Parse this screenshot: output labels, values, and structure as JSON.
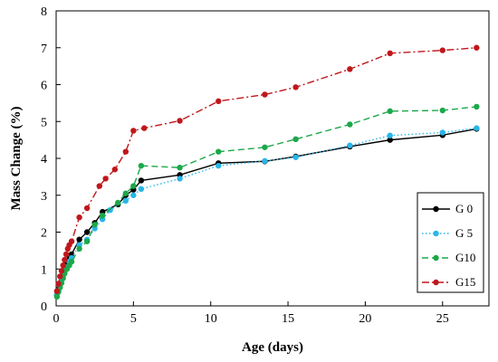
{
  "chart_data": {
    "type": "line",
    "xlabel": "Age (days)",
    "ylabel": "Mass Change (%)",
    "xlim": [
      0,
      28
    ],
    "ylim": [
      0,
      8
    ],
    "xticks": [
      0,
      5,
      10,
      15,
      20,
      25
    ],
    "yticks": [
      0,
      1,
      2,
      3,
      4,
      5,
      6,
      7,
      8
    ],
    "grid": false,
    "legend_position": "bottom-right",
    "series": [
      {
        "name": "G 0",
        "color": "#000000",
        "line_style": "solid",
        "points": [
          [
            0.05,
            0.3
          ],
          [
            0.15,
            0.45
          ],
          [
            0.25,
            0.6
          ],
          [
            0.35,
            0.75
          ],
          [
            0.45,
            0.9
          ],
          [
            0.55,
            1.0
          ],
          [
            0.7,
            1.15
          ],
          [
            0.85,
            1.28
          ],
          [
            1.0,
            1.4
          ],
          [
            1.5,
            1.8
          ],
          [
            2.0,
            2.0
          ],
          [
            2.5,
            2.25
          ],
          [
            3.0,
            2.55
          ],
          [
            4.0,
            2.75
          ],
          [
            4.5,
            3.0
          ],
          [
            5.0,
            3.15
          ],
          [
            5.5,
            3.4
          ],
          [
            8.0,
            3.55
          ],
          [
            10.5,
            3.87
          ],
          [
            13.5,
            3.92
          ],
          [
            15.5,
            4.05
          ],
          [
            19.0,
            4.32
          ],
          [
            21.6,
            4.5
          ],
          [
            25.0,
            4.63
          ],
          [
            27.2,
            4.8
          ]
        ]
      },
      {
        "name": "G 5",
        "color": "#29b6e8",
        "line_style": "dotted",
        "points": [
          [
            0.05,
            0.3
          ],
          [
            0.15,
            0.42
          ],
          [
            0.25,
            0.55
          ],
          [
            0.35,
            0.7
          ],
          [
            0.45,
            0.82
          ],
          [
            0.55,
            0.95
          ],
          [
            0.7,
            1.05
          ],
          [
            0.85,
            1.2
          ],
          [
            1.0,
            1.3
          ],
          [
            1.5,
            1.65
          ],
          [
            2.0,
            1.8
          ],
          [
            2.5,
            2.1
          ],
          [
            3.0,
            2.35
          ],
          [
            3.5,
            2.6
          ],
          [
            4.5,
            2.85
          ],
          [
            5.0,
            3.0
          ],
          [
            5.5,
            3.17
          ],
          [
            8.0,
            3.45
          ],
          [
            10.5,
            3.8
          ],
          [
            13.5,
            3.93
          ],
          [
            15.5,
            4.03
          ],
          [
            19.0,
            4.35
          ],
          [
            21.6,
            4.62
          ],
          [
            25.0,
            4.7
          ],
          [
            27.2,
            4.82
          ]
        ]
      },
      {
        "name": "G10",
        "color": "#1ca84a",
        "line_style": "dashed",
        "points": [
          [
            0.05,
            0.25
          ],
          [
            0.15,
            0.38
          ],
          [
            0.25,
            0.5
          ],
          [
            0.35,
            0.62
          ],
          [
            0.45,
            0.75
          ],
          [
            0.55,
            0.88
          ],
          [
            0.7,
            1.0
          ],
          [
            0.85,
            1.1
          ],
          [
            1.0,
            1.2
          ],
          [
            1.5,
            1.55
          ],
          [
            2.0,
            1.75
          ],
          [
            2.5,
            2.2
          ],
          [
            3.0,
            2.45
          ],
          [
            4.0,
            2.8
          ],
          [
            4.5,
            3.05
          ],
          [
            5.0,
            3.25
          ],
          [
            5.5,
            3.8
          ],
          [
            8.0,
            3.75
          ],
          [
            10.5,
            4.18
          ],
          [
            13.5,
            4.3
          ],
          [
            15.5,
            4.52
          ],
          [
            19.0,
            4.92
          ],
          [
            21.6,
            5.28
          ],
          [
            25.0,
            5.3
          ],
          [
            27.2,
            5.4
          ]
        ]
      },
      {
        "name": "G15",
        "color": "#c0161b",
        "line_style": "dashdot",
        "points": [
          [
            0.05,
            0.4
          ],
          [
            0.15,
            0.6
          ],
          [
            0.25,
            0.8
          ],
          [
            0.35,
            0.95
          ],
          [
            0.45,
            1.1
          ],
          [
            0.55,
            1.25
          ],
          [
            0.65,
            1.4
          ],
          [
            0.75,
            1.55
          ],
          [
            0.85,
            1.65
          ],
          [
            1.0,
            1.75
          ],
          [
            1.5,
            2.4
          ],
          [
            2.0,
            2.65
          ],
          [
            2.8,
            3.25
          ],
          [
            3.2,
            3.45
          ],
          [
            3.8,
            3.7
          ],
          [
            4.5,
            4.18
          ],
          [
            5.0,
            4.75
          ],
          [
            5.7,
            4.82
          ],
          [
            8.0,
            5.02
          ],
          [
            10.5,
            5.55
          ],
          [
            13.5,
            5.73
          ],
          [
            15.5,
            5.93
          ],
          [
            19.0,
            6.42
          ],
          [
            21.6,
            6.85
          ],
          [
            25.0,
            6.93
          ],
          [
            27.2,
            7.0
          ]
        ]
      }
    ]
  }
}
